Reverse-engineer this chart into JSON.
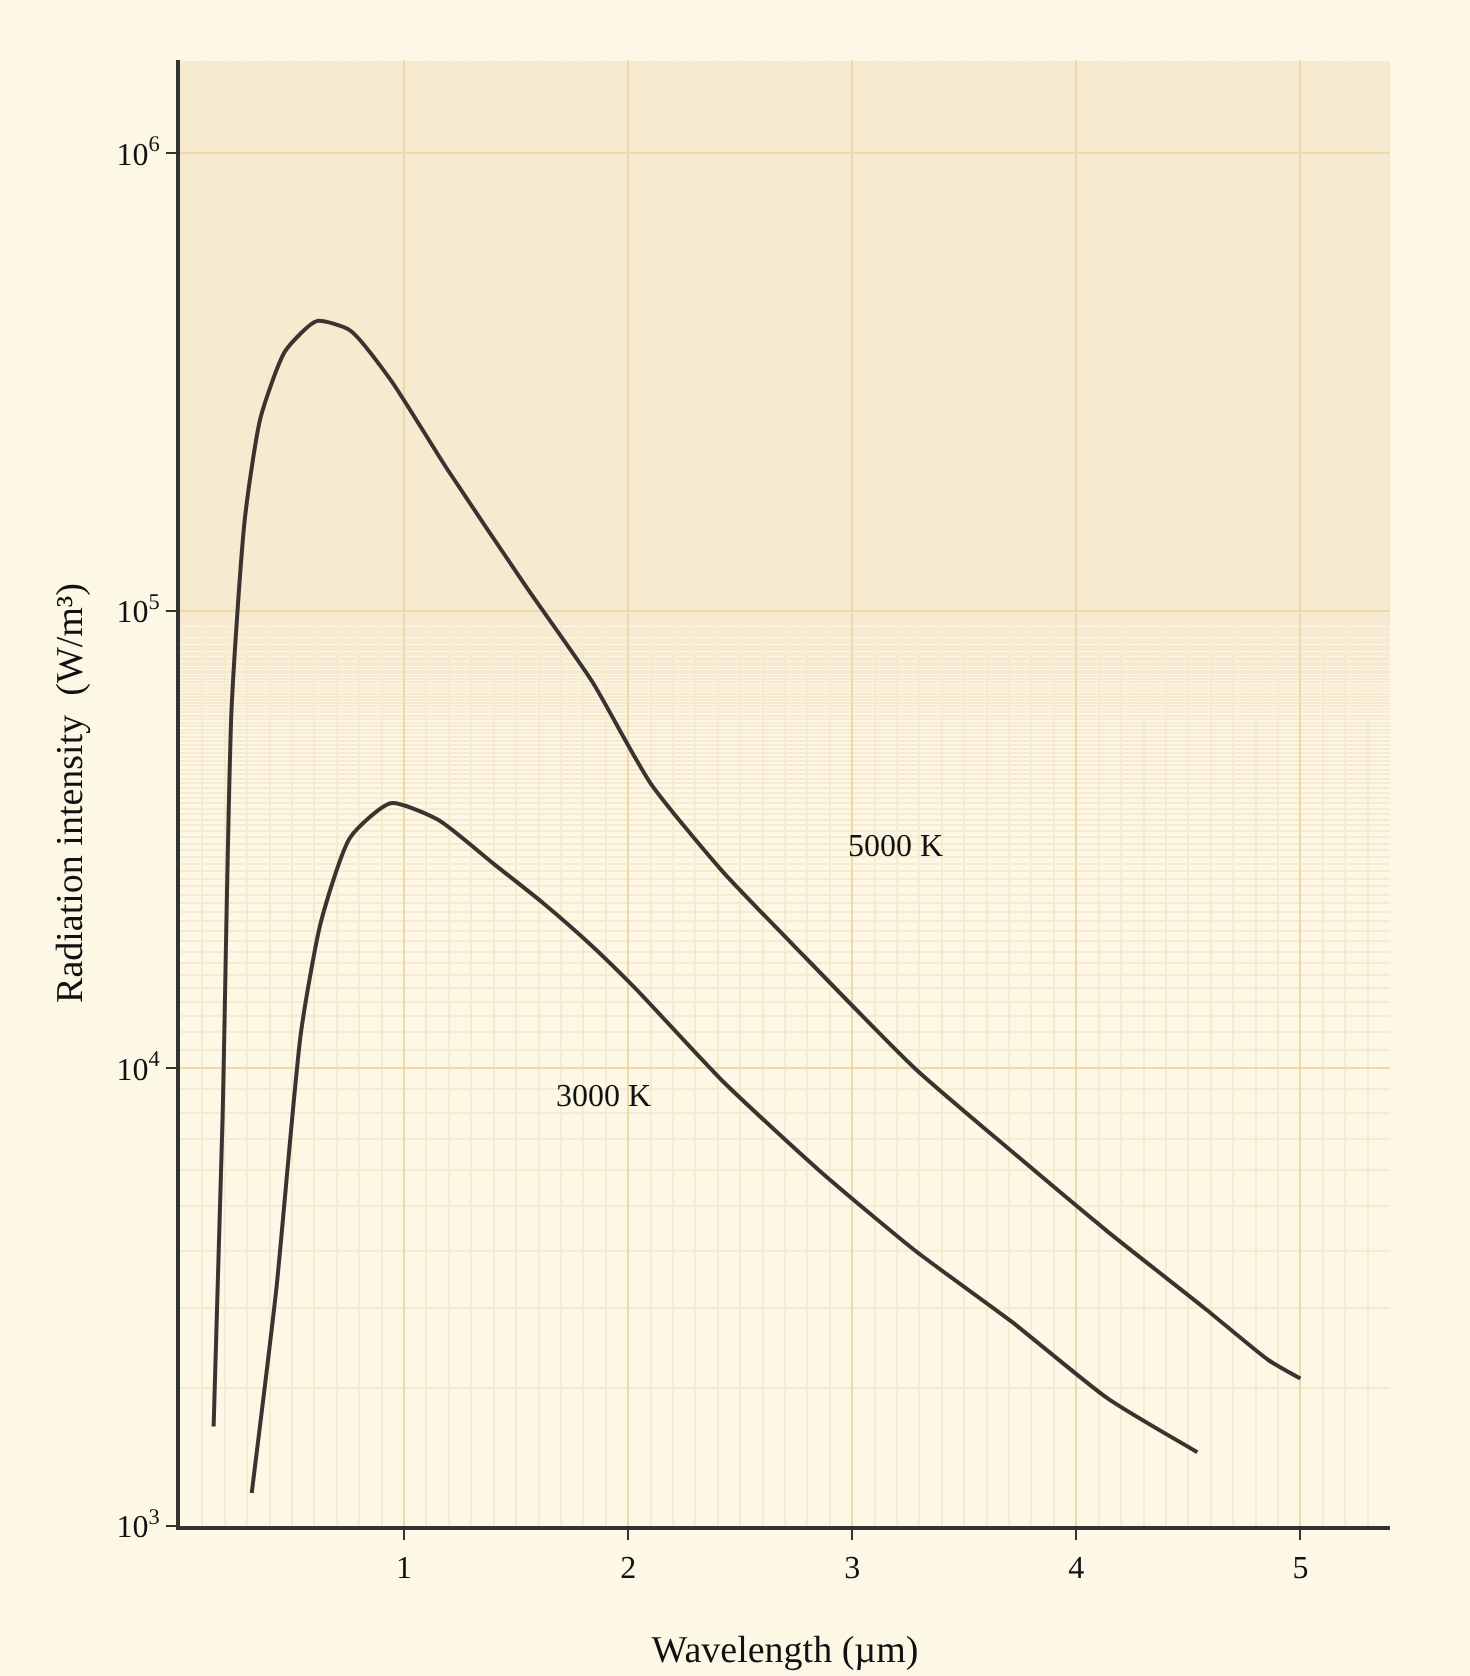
{
  "chart_data": {
    "type": "line",
    "xlabel": "Wavelength (µm)",
    "ylabel": "Radiation intensity  (W/m³)",
    "log": "y",
    "grid": true,
    "legend": false,
    "marker": "none",
    "line_style": "solid",
    "xlim": [
      0,
      5.4
    ],
    "xticks": [
      1,
      2,
      3,
      4,
      5
    ],
    "ylim": [
      1000,
      1600000
    ],
    "yticks": [
      {
        "value": 1000,
        "label": "10$^{3}$"
      },
      {
        "value": 10000,
        "label": "10$^{4}$"
      },
      {
        "value": 100000,
        "label": "10$^{5}$"
      },
      {
        "value": 1000000,
        "label": "10$^{6}$"
      }
    ],
    "series": [
      {
        "name": "5000 K",
        "color": "#3a3330",
        "x": [
          0.15,
          0.19,
          0.23,
          0.29,
          0.36,
          0.47,
          0.61,
          0.76,
          0.94,
          1.19,
          1.55,
          1.84,
          2.1,
          2.42,
          2.79,
          3.28,
          3.71,
          4.14,
          4.57,
          4.86,
          5.0
        ],
        "values": [
          1650,
          7800,
          61000,
          160000,
          265000,
          370000,
          430000,
          410000,
          320000,
          205000,
          112000,
          70000,
          42000,
          27000,
          17500,
          10000,
          6600,
          4400,
          3000,
          2300,
          2100
        ]
      },
      {
        "name": "3000 K",
        "color": "#3a3330",
        "x": [
          0.32,
          0.43,
          0.54,
          0.63,
          0.76,
          0.94,
          1.15,
          1.4,
          1.62,
          1.84,
          2.03,
          2.42,
          2.85,
          3.28,
          3.71,
          4.14,
          4.54
        ],
        "values": [
          1180,
          3300,
          12000,
          21000,
          32000,
          38000,
          35000,
          28000,
          23000,
          18500,
          15000,
          9400,
          6000,
          4000,
          2800,
          1900,
          1450
        ]
      }
    ]
  }
}
